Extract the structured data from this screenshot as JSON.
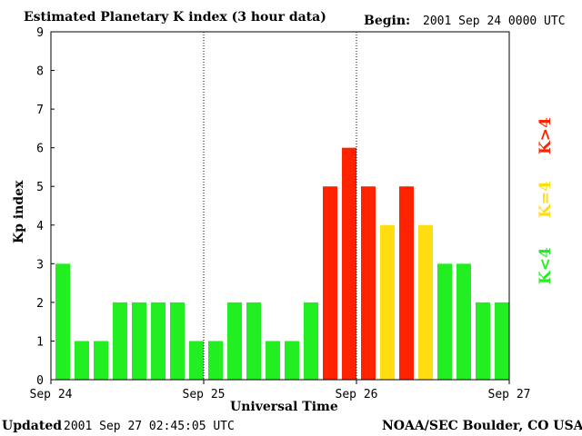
{
  "header": {
    "title": "Estimated Planetary K index (3 hour data)",
    "begin_label": "Begin:",
    "begin_value": "2001 Sep 24 0000 UTC"
  },
  "footer": {
    "updated_label": "Updated",
    "updated_value": "2001 Sep 27 02:45:05 UTC",
    "credit": "NOAA/SEC Boulder, CO USA"
  },
  "legend": {
    "high": "K>4",
    "equal": "K=4",
    "low": "K<4"
  },
  "colors": {
    "low": "#22ee22",
    "equal": "#ffdd11",
    "high": "#ff2200",
    "axis": "#000000"
  },
  "chart_data": {
    "type": "bar",
    "xlabel": "Universal Time",
    "ylabel": "Kp index",
    "ylim": [
      0,
      9
    ],
    "yticks": [
      "0",
      "1",
      "2",
      "3",
      "4",
      "5",
      "6",
      "7",
      "8",
      "9"
    ],
    "xticks": [
      "Sep 24",
      "Sep 25",
      "Sep 26",
      "Sep 27"
    ],
    "grid": false,
    "day_separators": [
      "Sep 25",
      "Sep 26"
    ],
    "bar_interval_hours": 3,
    "values": [
      3,
      1,
      1,
      2,
      2,
      2,
      2,
      1,
      1,
      2,
      2,
      1,
      1,
      2,
      5,
      6,
      5,
      4,
      5,
      4,
      3,
      3,
      2,
      2
    ]
  }
}
